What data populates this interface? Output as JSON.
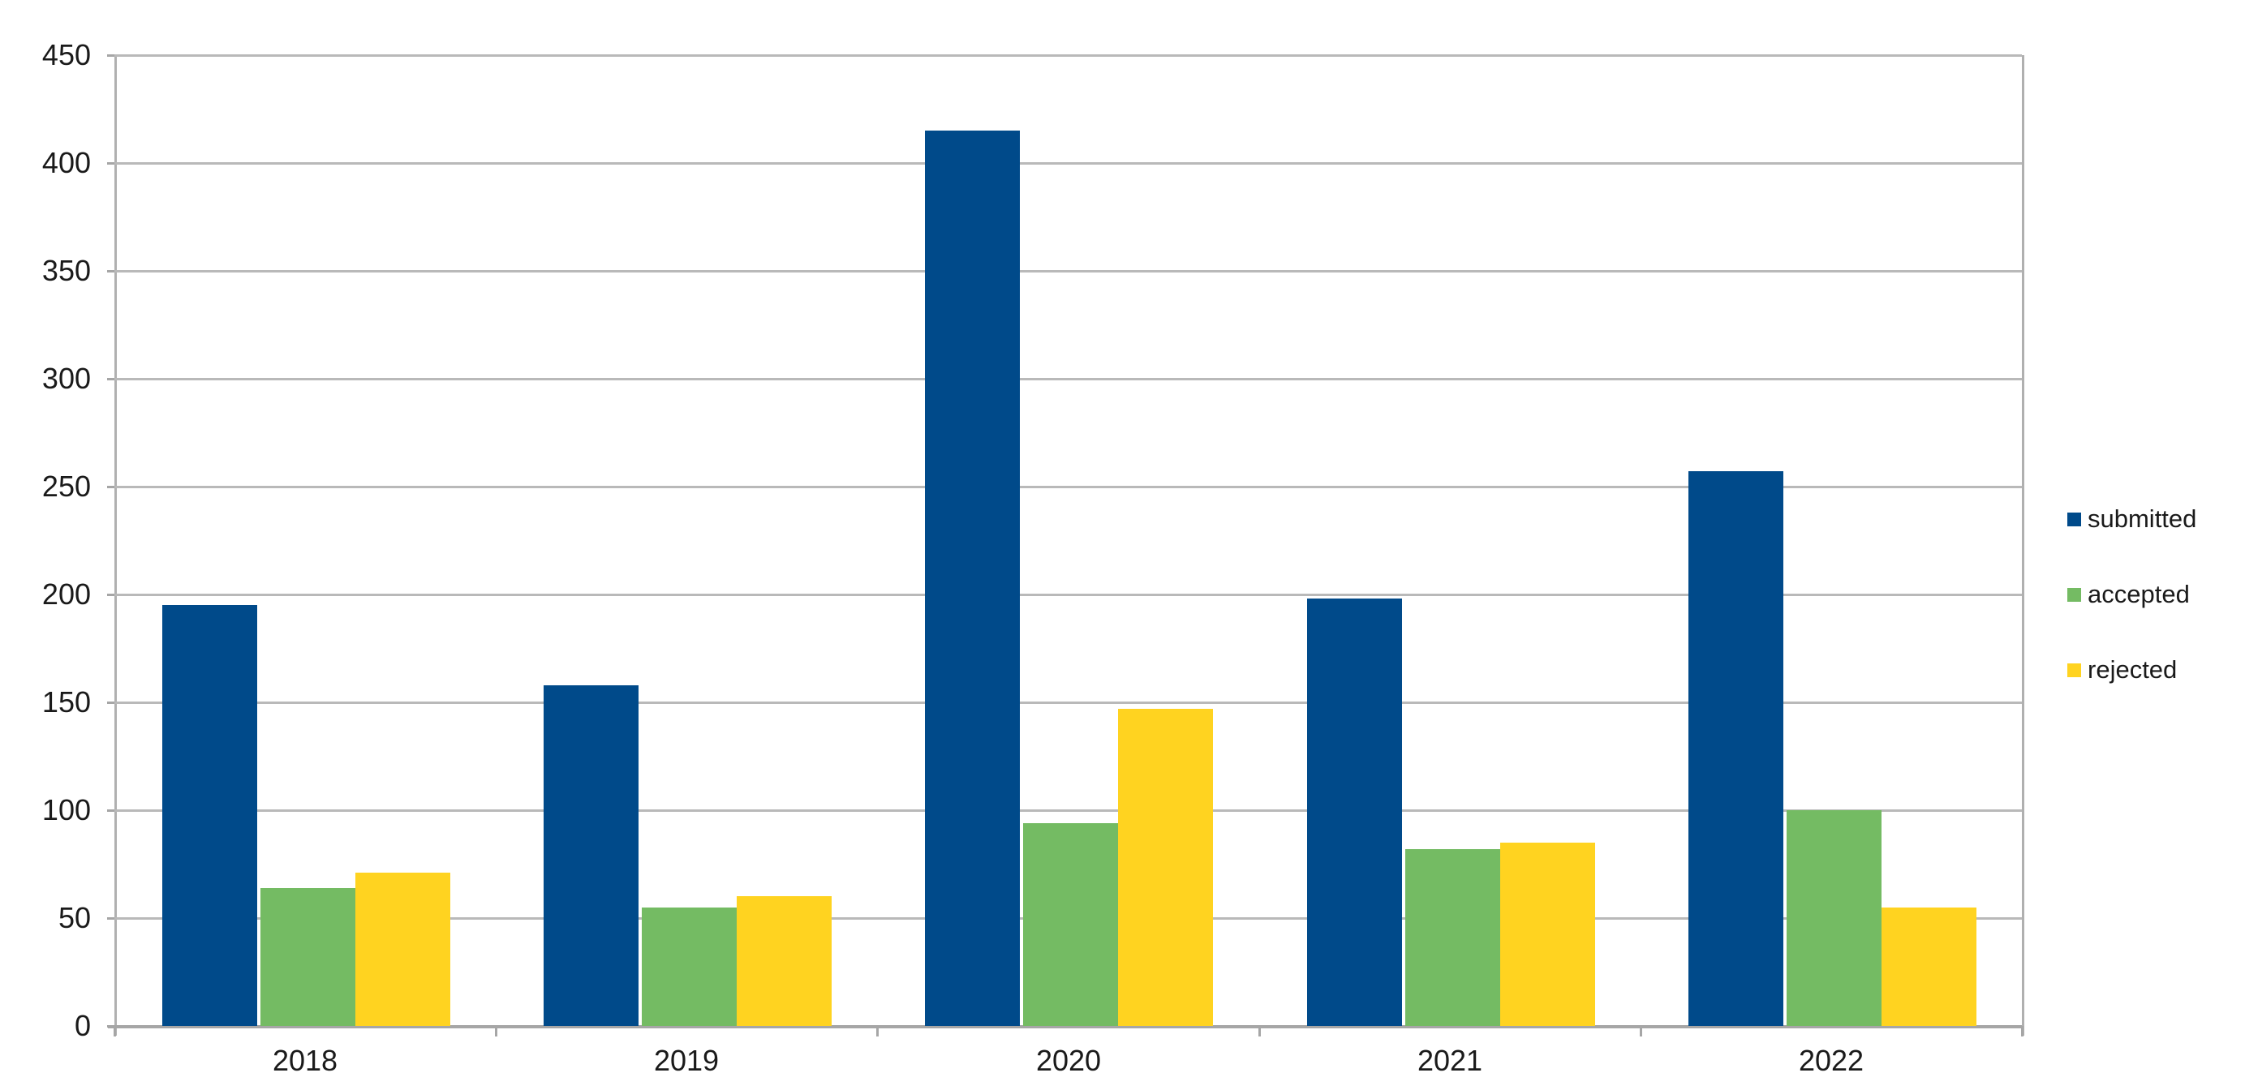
{
  "chart_data": {
    "type": "bar",
    "title": "",
    "xlabel": "",
    "ylabel": "",
    "categories": [
      "2018",
      "2019",
      "2020",
      "2021",
      "2022"
    ],
    "series": [
      {
        "name": "submitted",
        "color": "#004a8a",
        "values": [
          195,
          158,
          415,
          198,
          257
        ]
      },
      {
        "name": "accepted",
        "color": "#74bb63",
        "values": [
          64,
          55,
          94,
          82,
          100
        ]
      },
      {
        "name": "rejected",
        "color": "#ffd320",
        "values": [
          71,
          60,
          147,
          85,
          55
        ]
      }
    ],
    "ylim": [
      0,
      450
    ],
    "ytick_step": 50,
    "ytick_labels": [
      "0",
      "50",
      "100",
      "150",
      "200",
      "250",
      "300",
      "350",
      "400",
      "450"
    ],
    "grid": "horizontal",
    "legend_position": "right",
    "legend_labels": [
      "submitted",
      "accepted",
      "rejected"
    ]
  }
}
